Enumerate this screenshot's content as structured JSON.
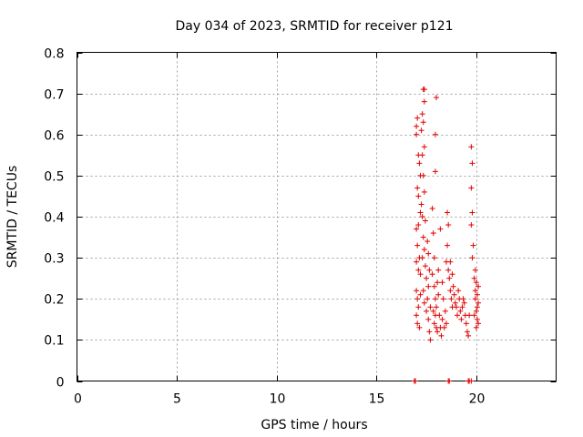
{
  "chart_data": {
    "type": "scatter",
    "title": "Day 034 of 2023, SRMTID for receiver p121",
    "xlabel": "GPS time / hours",
    "ylabel": "SRMTID / TECUs",
    "xlim": [
      0,
      24
    ],
    "ylim": [
      0,
      0.8
    ],
    "x_ticks": [
      0,
      5,
      10,
      15,
      20
    ],
    "x_tick_labels": [
      "0",
      "5",
      "10",
      "15",
      "20"
    ],
    "y_ticks": [
      0,
      0.1,
      0.2,
      0.3,
      0.4,
      0.5,
      0.6,
      0.7,
      0.8
    ],
    "y_tick_labels": [
      "0",
      "0.1",
      "0.2",
      "0.3",
      "0.4",
      "0.5",
      "0.6",
      "0.7",
      "0.8"
    ],
    "grid": true,
    "marker": "+",
    "marker_color": "#e00000",
    "series": [
      {
        "name": "SRMTID",
        "points": [
          [
            16.9,
            0.0
          ],
          [
            16.95,
            0.0
          ],
          [
            18.6,
            0.0
          ],
          [
            18.65,
            0.0
          ],
          [
            19.6,
            0.0
          ],
          [
            19.65,
            0.0
          ],
          [
            19.75,
            0.0
          ],
          [
            17.0,
            0.62
          ],
          [
            17.05,
            0.64
          ],
          [
            17.0,
            0.6
          ],
          [
            17.1,
            0.55
          ],
          [
            17.15,
            0.53
          ],
          [
            17.2,
            0.5
          ],
          [
            17.05,
            0.47
          ],
          [
            17.1,
            0.45
          ],
          [
            17.2,
            0.41
          ],
          [
            17.0,
            0.37
          ],
          [
            17.1,
            0.38
          ],
          [
            17.05,
            0.33
          ],
          [
            17.15,
            0.3
          ],
          [
            17.0,
            0.29
          ],
          [
            17.1,
            0.27
          ],
          [
            17.2,
            0.26
          ],
          [
            17.0,
            0.22
          ],
          [
            17.05,
            0.2
          ],
          [
            17.1,
            0.18
          ],
          [
            17.0,
            0.16
          ],
          [
            17.05,
            0.14
          ],
          [
            17.15,
            0.13
          ],
          [
            17.2,
            0.21
          ],
          [
            17.35,
            0.71
          ],
          [
            17.4,
            0.71
          ],
          [
            17.4,
            0.68
          ],
          [
            17.3,
            0.65
          ],
          [
            17.35,
            0.63
          ],
          [
            17.25,
            0.61
          ],
          [
            17.4,
            0.57
          ],
          [
            17.3,
            0.55
          ],
          [
            17.35,
            0.5
          ],
          [
            17.4,
            0.46
          ],
          [
            17.25,
            0.43
          ],
          [
            17.3,
            0.4
          ],
          [
            17.45,
            0.39
          ],
          [
            17.35,
            0.35
          ],
          [
            17.4,
            0.32
          ],
          [
            17.3,
            0.3
          ],
          [
            17.45,
            0.28
          ],
          [
            17.5,
            0.25
          ],
          [
            17.35,
            0.22
          ],
          [
            17.4,
            0.19
          ],
          [
            17.5,
            0.17
          ],
          [
            17.55,
            0.34
          ],
          [
            17.6,
            0.31
          ],
          [
            17.65,
            0.27
          ],
          [
            17.55,
            0.2
          ],
          [
            17.6,
            0.15
          ],
          [
            17.65,
            0.12
          ],
          [
            17.7,
            0.1
          ],
          [
            17.6,
            0.23
          ],
          [
            17.7,
            0.18
          ],
          [
            17.8,
            0.42
          ],
          [
            17.85,
            0.36
          ],
          [
            17.9,
            0.3
          ],
          [
            17.8,
            0.26
          ],
          [
            17.9,
            0.23
          ],
          [
            17.95,
            0.2
          ],
          [
            17.85,
            0.17
          ],
          [
            17.9,
            0.14
          ],
          [
            18.0,
            0.13
          ],
          [
            18.05,
            0.12
          ],
          [
            17.95,
            0.16
          ],
          [
            18.0,
            0.18
          ],
          [
            18.05,
            0.24
          ],
          [
            18.1,
            0.27
          ],
          [
            18.0,
            0.69
          ],
          [
            17.95,
            0.6
          ],
          [
            17.95,
            0.51
          ],
          [
            18.1,
            0.21
          ],
          [
            18.15,
            0.16
          ],
          [
            18.2,
            0.13
          ],
          [
            18.25,
            0.11
          ],
          [
            18.2,
            0.37
          ],
          [
            18.3,
            0.24
          ],
          [
            18.35,
            0.2
          ],
          [
            18.3,
            0.15
          ],
          [
            18.4,
            0.13
          ],
          [
            18.45,
            0.17
          ],
          [
            18.5,
            0.14
          ],
          [
            18.55,
            0.41
          ],
          [
            18.6,
            0.38
          ],
          [
            18.55,
            0.33
          ],
          [
            18.5,
            0.29
          ],
          [
            18.6,
            0.27
          ],
          [
            18.65,
            0.25
          ],
          [
            18.7,
            0.22
          ],
          [
            18.75,
            0.2
          ],
          [
            18.8,
            0.18
          ],
          [
            18.7,
            0.29
          ],
          [
            18.8,
            0.26
          ],
          [
            18.85,
            0.23
          ],
          [
            18.9,
            0.21
          ],
          [
            18.95,
            0.19
          ],
          [
            19.0,
            0.18
          ],
          [
            19.05,
            0.16
          ],
          [
            19.1,
            0.22
          ],
          [
            19.15,
            0.2
          ],
          [
            19.2,
            0.17
          ],
          [
            19.25,
            0.15
          ],
          [
            19.3,
            0.18
          ],
          [
            19.35,
            0.2
          ],
          [
            19.4,
            0.19
          ],
          [
            19.45,
            0.16
          ],
          [
            19.5,
            0.14
          ],
          [
            19.55,
            0.12
          ],
          [
            19.6,
            0.11
          ],
          [
            19.65,
            0.16
          ],
          [
            19.75,
            0.57
          ],
          [
            19.8,
            0.53
          ],
          [
            19.75,
            0.47
          ],
          [
            19.8,
            0.41
          ],
          [
            19.75,
            0.38
          ],
          [
            19.85,
            0.33
          ],
          [
            19.8,
            0.3
          ],
          [
            19.9,
            0.25
          ],
          [
            19.95,
            0.22
          ],
          [
            20.0,
            0.24
          ],
          [
            20.05,
            0.21
          ],
          [
            20.1,
            0.19
          ],
          [
            20.0,
            0.17
          ],
          [
            20.05,
            0.15
          ],
          [
            20.1,
            0.14
          ],
          [
            19.95,
            0.2
          ],
          [
            20.05,
            0.18
          ],
          [
            19.9,
            0.16
          ],
          [
            20.1,
            0.23
          ],
          [
            19.95,
            0.27
          ],
          [
            20.0,
            0.13
          ]
        ]
      }
    ]
  }
}
